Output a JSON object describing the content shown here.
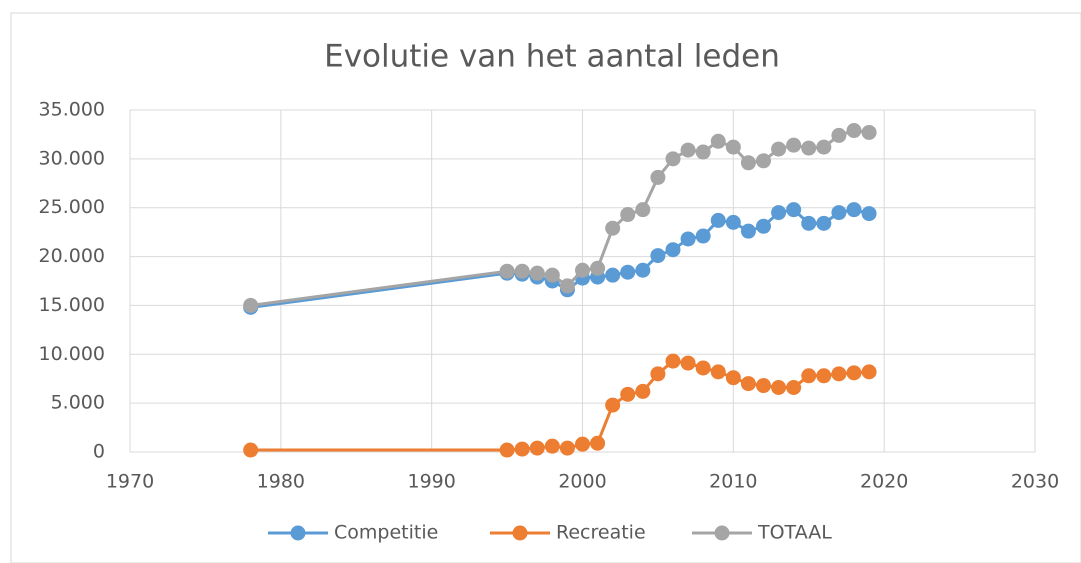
{
  "chart_data": {
    "type": "line",
    "title": "Evolutie van het aantal leden",
    "x": [
      1978,
      1995,
      1996,
      1997,
      1998,
      1999,
      2000,
      2001,
      2002,
      2003,
      2004,
      2005,
      2006,
      2007,
      2008,
      2009,
      2010,
      2011,
      2012,
      2013,
      2014,
      2015,
      2016,
      2017,
      2018,
      2019
    ],
    "series": [
      {
        "name": "Competitie",
        "color": "#5b9bd5",
        "values": [
          14800,
          18300,
          18200,
          17900,
          17500,
          16600,
          17800,
          17900,
          18100,
          18400,
          18600,
          20100,
          20700,
          21800,
          22100,
          23700,
          23500,
          22600,
          23100,
          24500,
          24800,
          23400,
          23400,
          24500,
          24800,
          24400
        ]
      },
      {
        "name": "Recreatie",
        "color": "#ed7d31",
        "values": [
          200,
          200,
          300,
          400,
          600,
          400,
          800,
          900,
          4800,
          5900,
          6200,
          8000,
          9300,
          9100,
          8600,
          8200,
          7600,
          7000,
          6800,
          6600,
          6600,
          7800,
          7800,
          8000,
          8100,
          8200
        ]
      },
      {
        "name": "TOTAAL",
        "color": "#a5a5a5",
        "values": [
          15000,
          18500,
          18500,
          18300,
          18100,
          17000,
          18600,
          18800,
          22900,
          24300,
          24800,
          28100,
          30000,
          30900,
          30700,
          31800,
          31200,
          29600,
          29800,
          31000,
          31400,
          31100,
          31200,
          32400,
          32900,
          32700
        ]
      }
    ],
    "xlim": [
      1970,
      2030
    ],
    "xticks": [
      1970,
      1980,
      1990,
      2000,
      2010,
      2020,
      2030
    ],
    "ylim": [
      0,
      35000
    ],
    "yticks": [
      0,
      {
        "value": 5000,
        "label": "5.000"
      },
      {
        "value": 10000,
        "label": "10.000"
      },
      {
        "value": 15000,
        "label": "15.000"
      },
      {
        "value": 20000,
        "label": "20.000"
      },
      {
        "value": 25000,
        "label": "25.000"
      },
      {
        "value": 30000,
        "label": "30.000"
      },
      {
        "value": 35000,
        "label": "35.000"
      }
    ],
    "grid": true,
    "legend": "bottom"
  }
}
